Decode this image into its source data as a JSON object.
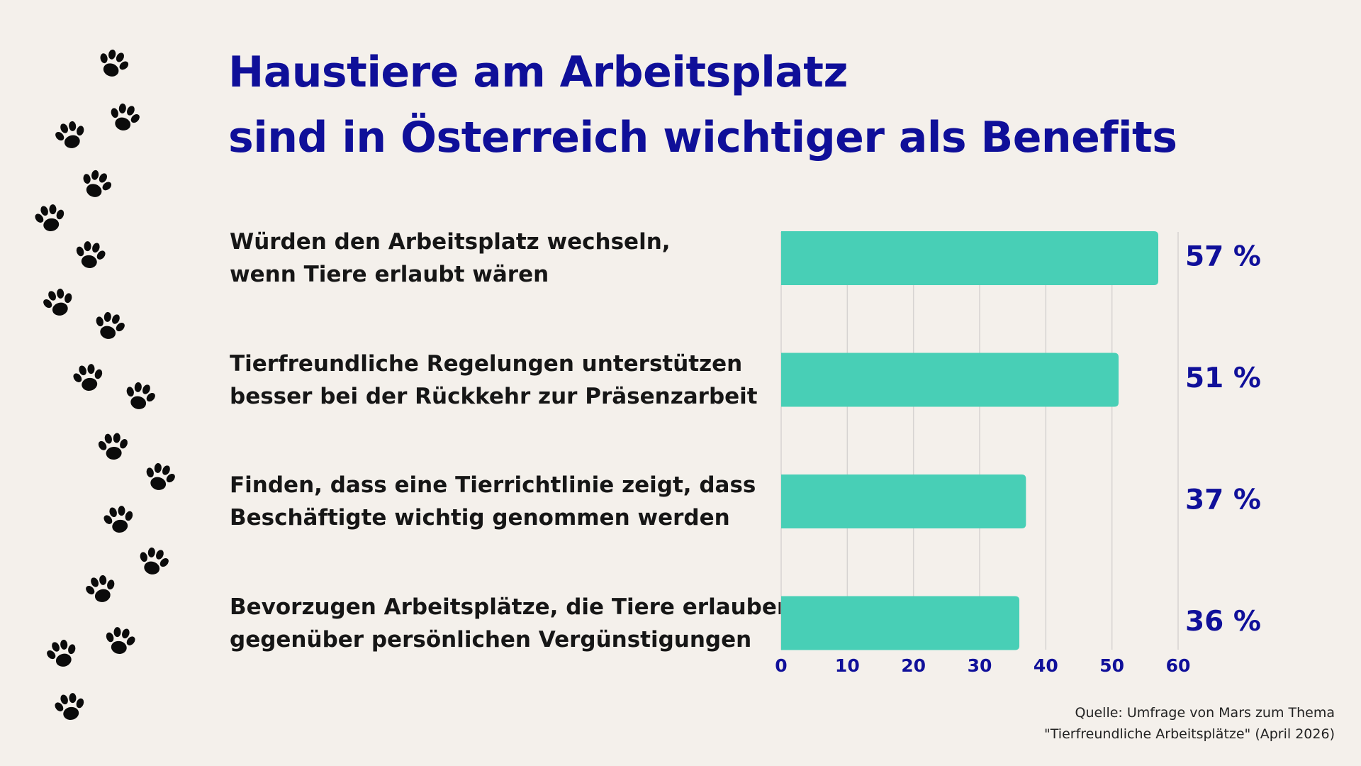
{
  "chart_data": {
    "type": "barh",
    "title": "Haustiere am Arbeitsplatz\nsind in Österreich wichtiger als Benefits",
    "categories": [
      "Würden den Arbeitsplatz wechseln,\nwenn Tiere erlaubt wären",
      "Tierfreundliche Regelungen unterstützen\nbesser bei der Rückkehr zur Präsenzarbeit",
      "Finden, dass eine Tierrichtlinie zeigt, dass\nBeschäftigte wichtig genommen werden",
      "Bevorzugen Arbeitsplätze, die Tiere erlauben,\ngegenüber persönlichen Vergünstigungen"
    ],
    "values": [
      57,
      51,
      37,
      36
    ],
    "value_labels": [
      "57 %",
      "51 %",
      "37 %",
      "36 %"
    ],
    "color": "#48cfb6",
    "xlim": [
      0,
      60
    ],
    "xticks": [
      0,
      10,
      20,
      30,
      40,
      50,
      60
    ],
    "grid": true,
    "source": "Quelle: Umfrage von Mars zum Thema\n\"Tierfreundliche Arbeitsplätze\" (April 2026)"
  }
}
